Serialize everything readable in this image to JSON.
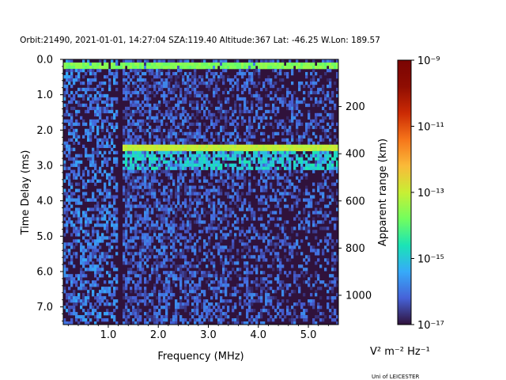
{
  "chart_data": {
    "type": "heatmap",
    "title": "Orbit:21490, 2021-01-01, 14:27:04 SZA:119.40 Altitude:367 Lat: -46.25 W.Lon: 189.57",
    "xlabel": "Frequency (MHz)",
    "ylabel": "Time Delay (ms)",
    "y2label": "Apparent range (km)",
    "xlim": [
      0.1,
      5.6
    ],
    "ylim": [
      7.5,
      0.0
    ],
    "x_ticks": [
      1.0,
      2.0,
      3.0,
      4.0,
      5.0
    ],
    "x_tick_labels": [
      "1.0",
      "2.0",
      "3.0",
      "4.0",
      "5.0"
    ],
    "y_ticks": [
      0.0,
      1.0,
      2.0,
      3.0,
      4.0,
      5.0,
      6.0,
      7.0
    ],
    "y_tick_labels": [
      "0.0",
      "1.0",
      "2.0",
      "3.0",
      "4.0",
      "5.0",
      "6.0",
      "7.0"
    ],
    "y2_ticks_km": [
      200,
      400,
      600,
      800,
      1000
    ],
    "y2_tick_labels": [
      "200",
      "400",
      "600",
      "800",
      "1000"
    ],
    "km_per_ms": 149.9,
    "colorbar": {
      "scale": "log",
      "range_exponent": [
        -17,
        -9
      ],
      "tick_exponents": [
        -9,
        -11,
        -13,
        -15,
        -17
      ],
      "tick_labels": [
        "10⁻⁹",
        "10⁻¹¹",
        "10⁻¹³",
        "10⁻¹⁵",
        "10⁻¹⁷"
      ],
      "colormap": "turbo"
    },
    "unit_label": "V² m⁻² Hz⁻¹",
    "features": [
      {
        "name": "low-delay echo band",
        "delay_ms": 0.2,
        "freq_mhz": [
          0.1,
          5.6
        ],
        "level_exponent": -14
      },
      {
        "name": "ionospheric echo band",
        "delay_ms": 2.5,
        "freq_mhz": [
          1.3,
          5.6
        ],
        "level_exponent": -13.3
      },
      {
        "name": "dense low-frequency interference",
        "freq_mhz": [
          0.1,
          1.2
        ],
        "level_exponent": -16.2
      },
      {
        "name": "background noise",
        "level_exponent": -16.5
      }
    ]
  },
  "credit": "Uni of LEICESTER"
}
